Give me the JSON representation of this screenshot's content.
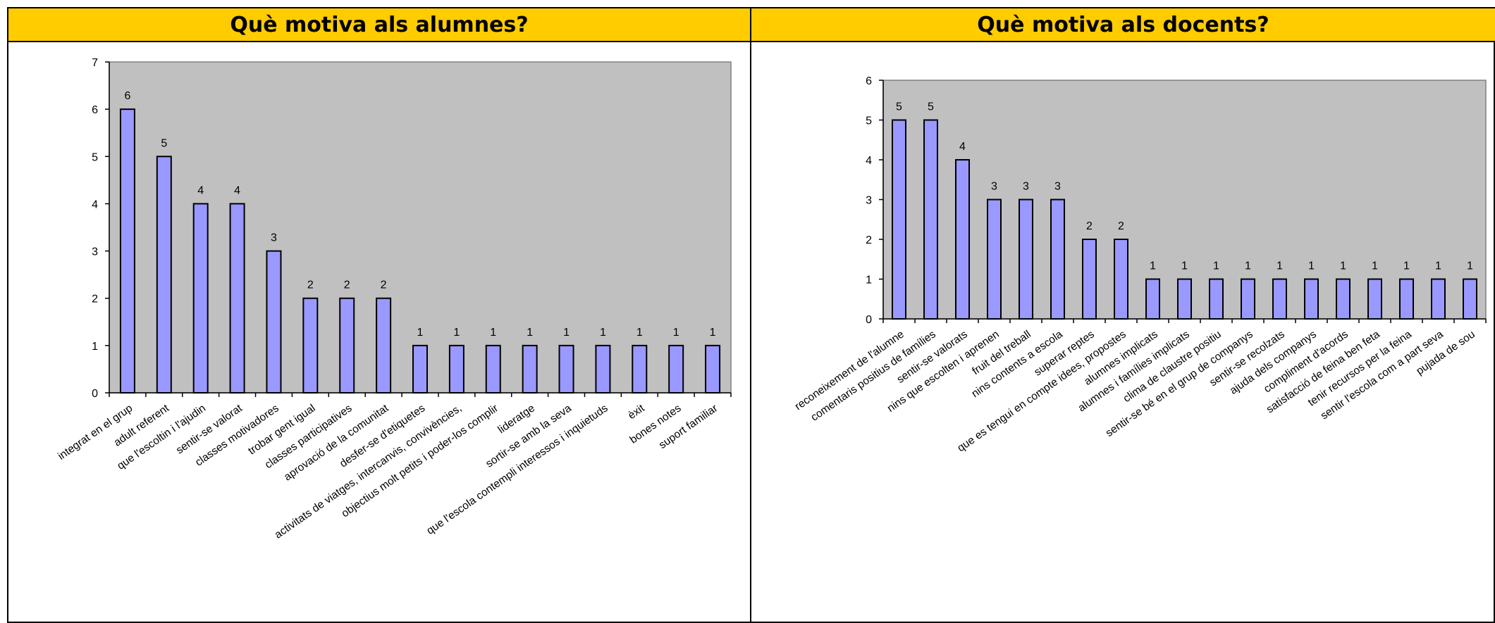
{
  "panels": {
    "left": {
      "title": "Què motiva als alumnes?"
    },
    "right": {
      "title": "Què motiva als docents?"
    }
  },
  "colors": {
    "header_bg": "#ffcc00",
    "plot_bg": "#c0c0c0",
    "bar_fill": "#9999ff",
    "bar_stroke": "#000000"
  },
  "chart_data": [
    {
      "type": "bar",
      "title": "Què motiva als alumnes?",
      "ylim": [
        0,
        7
      ],
      "yticks": [
        0,
        1,
        2,
        3,
        4,
        5,
        6,
        7
      ],
      "grid": false,
      "data_labels": true,
      "categories": [
        "integrat en el grup",
        "adult referent",
        "que l'escoltin i l'ajudin",
        "sentir-se valorat",
        "classes motivadores",
        "trobar gent igual",
        "classes participatives",
        "aprovació de la comunitat",
        "desfer-se d'etiquetes",
        "activitats de viatges, intercanvis, convivències,",
        "objectius molt petits i poder-los complir",
        "lideratge",
        "sortir-se amb la seva",
        "que l'escola contempli interessos i inquietuds",
        "èxit",
        "bones notes",
        "suport familiar"
      ],
      "values": [
        6,
        5,
        4,
        4,
        3,
        2,
        2,
        2,
        1,
        1,
        1,
        1,
        1,
        1,
        1,
        1,
        1
      ]
    },
    {
      "type": "bar",
      "title": "Què motiva als docents?",
      "ylim": [
        0,
        6
      ],
      "yticks": [
        0,
        1,
        2,
        3,
        4,
        5,
        6
      ],
      "grid": false,
      "data_labels": true,
      "categories": [
        "reconeixement de l'alumne",
        "comentaris positius de famílies",
        "sentir-se valorats",
        "nins que escolten i aprenen",
        "fruit del treball",
        "nins contents a escola",
        "superar reptes",
        "que es tengui en compte idees, propostes",
        "alumnes implicats",
        "alumnes i famílies implicats",
        "clima de claustre positiu",
        "sentir-se bé en el grup de companys",
        "sentir-se recolzats",
        "ajuda dels companys",
        "compliment d'acords",
        "satisfacció de feina ben feta",
        "tenir recursos per la feina",
        "sentir l'escola com a part seva",
        "pujada de sou"
      ],
      "values": [
        5,
        5,
        4,
        3,
        3,
        3,
        2,
        2,
        1,
        1,
        1,
        1,
        1,
        1,
        1,
        1,
        1,
        1,
        1
      ]
    }
  ]
}
